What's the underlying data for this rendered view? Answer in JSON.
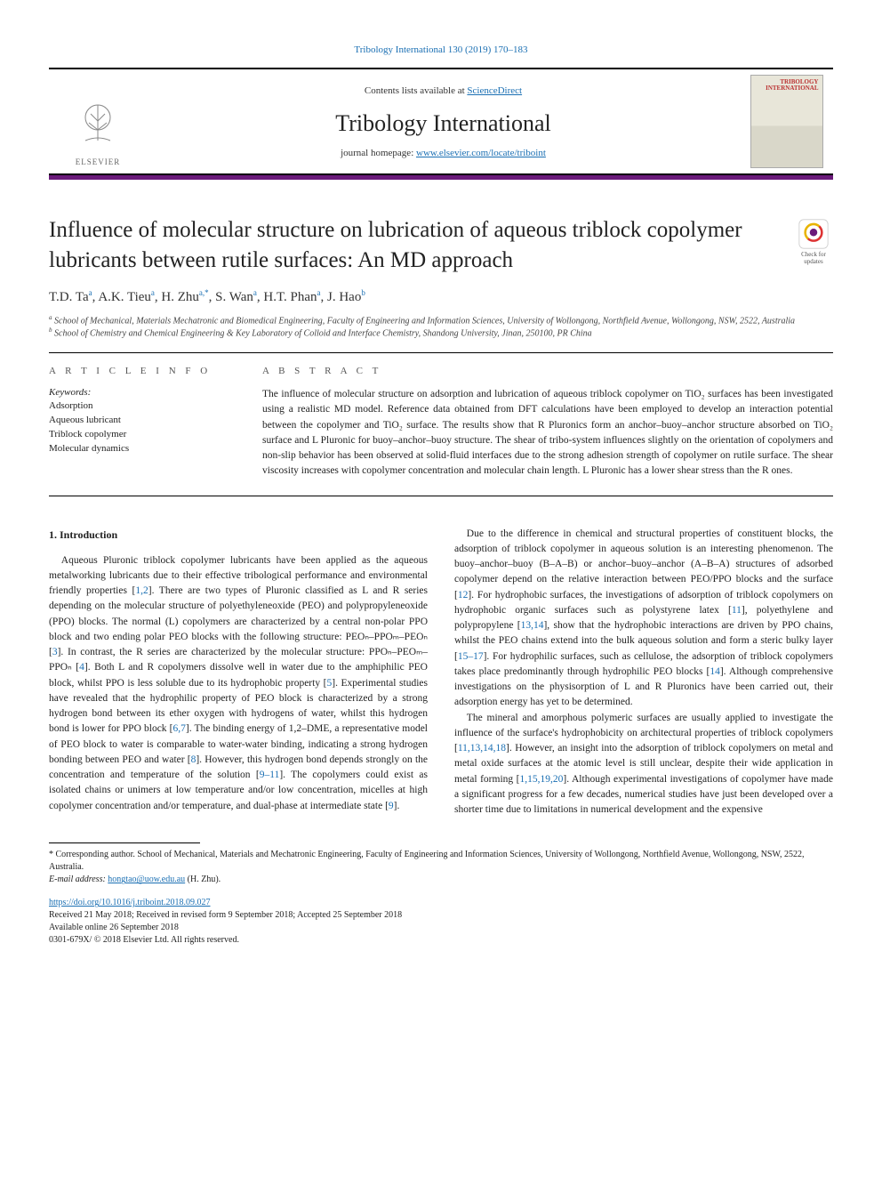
{
  "header": {
    "citation": "Tribology International 130 (2019) 170–183",
    "contents_prefix": "Contents lists available at ",
    "contents_link": "ScienceDirect",
    "journal": "Tribology International",
    "homepage_prefix": "journal homepage: ",
    "homepage_url": "www.elsevier.com/locate/triboint",
    "publisher_label": "ELSEVIER",
    "cover_label": "TRIBOLOGY INTERNATIONAL"
  },
  "badge": {
    "line1": "Check for",
    "line2": "updates"
  },
  "article": {
    "title": "Influence of molecular structure on lubrication of aqueous triblock copolymer lubricants between rutile surfaces: An MD approach",
    "authors_html": "T.D. Ta<sup>a</sup>, A.K. Tieu<sup>a</sup>, H. Zhu<sup>a,*</sup>, S. Wan<sup>a</sup>, H.T. Phan<sup>a</sup>, J. Hao<sup>b</sup>",
    "affiliations": [
      "a School of Mechanical, Materials Mechatronic and Biomedical Engineering, Faculty of Engineering and Information Sciences, University of Wollongong, Northfield Avenue, Wollongong, NSW, 2522, Australia",
      "b School of Chemistry and Chemical Engineering & Key Laboratory of Colloid and Interface Chemistry, Shandong University, Jinan, 250100, PR China"
    ]
  },
  "info": {
    "article_info_label": "A R T I C L E  I N F O",
    "abstract_label": "A B S T R A C T",
    "keywords_head": "Keywords:",
    "keywords": [
      "Adsorption",
      "Aqueous lubricant",
      "Triblock copolymer",
      "Molecular dynamics"
    ],
    "abstract": "The influence of molecular structure on adsorption and lubrication of aqueous triblock copolymer on TiO₂ surfaces has been investigated using a realistic MD model. Reference data obtained from DFT calculations have been employed to develop an interaction potential between the copolymer and TiO₂ surface. The results show that R Pluronics form an anchor–buoy–anchor structure absorbed on TiO₂ surface and L Pluronic for buoy–anchor–buoy structure. The shear of tribo-system influences slightly on the orientation of copolymers and non-slip behavior has been observed at solid-fluid interfaces due to the strong adhesion strength of copolymer on rutile surface. The shear viscosity increases with copolymer concentration and molecular chain length. L Pluronic has a lower shear stress than the R ones."
  },
  "body": {
    "intro_head": "1. Introduction",
    "left_paragraphs": [
      "Aqueous Pluronic triblock copolymer lubricants have been applied as the aqueous metalworking lubricants due to their effective tribological performance and environmental friendly properties [1,2]. There are two types of Pluronic classified as L and R series depending on the molecular structure of polyethyleneoxide (PEO) and polypropyleneoxide (PPO) blocks. The normal (L) copolymers are characterized by a central non-polar PPO block and two ending polar PEO blocks with the following structure: PEOₙ–PPOₘ–PEOₙ [3]. In contrast, the R series are characterized by the molecular structure: PPOₙ–PEOₘ–PPOₙ [4]. Both L and R copolymers dissolve well in water due to the amphiphilic PEO block, whilst PPO is less soluble due to its hydrophobic property [5]. Experimental studies have revealed that the hydrophilic property of PEO block is characterized by a strong hydrogen bond between its ether oxygen with hydrogens of water, whilst this hydrogen bond is lower for PPO block [6,7]. The binding energy of 1,2–DME, a representative model of PEO block to water is comparable to water-water binding, indicating a strong hydrogen bonding between PEO and water [8]. However, this hydrogen bond depends strongly on the concentration and temperature of the solution [9–11]. The copolymers could exist as isolated chains or unimers at low temperature and/or low concentration, micelles at high copolymer concentration and/or temperature, and dual-phase at intermediate state [9]."
    ],
    "right_paragraphs": [
      "Due to the difference in chemical and structural properties of constituent blocks, the adsorption of triblock copolymer in aqueous solution is an interesting phenomenon. The buoy–anchor–buoy (B–A–B) or anchor–buoy–anchor (A–B–A) structures of adsorbed copolymer depend on the relative interaction between PEO/PPO blocks and the surface [12]. For hydrophobic surfaces, the investigations of adsorption of triblock copolymers on hydrophobic organic surfaces such as polystyrene latex [11], polyethylene and polypropylene [13,14], show that the hydrophobic interactions are driven by PPO chains, whilst the PEO chains extend into the bulk aqueous solution and form a steric bulky layer [15–17]. For hydrophilic surfaces, such as cellulose, the adsorption of triblock copolymers takes place predominantly through hydrophilic PEO blocks [14]. Although comprehensive investigations on the physisorption of L and R Pluronics have been carried out, their adsorption energy has yet to be determined.",
      "The mineral and amorphous polymeric surfaces are usually applied to investigate the influence of the surface's hydrophobicity on architectural properties of triblock copolymers [11,13,14,18]. However, an insight into the adsorption of triblock copolymers on metal and metal oxide surfaces at the atomic level is still unclear, despite their wide application in metal forming [1,15,19,20]. Although experimental investigations of copolymer have made a significant progress for a few decades, numerical studies have just been developed over a shorter time due to limitations in numerical development and the expensive"
    ]
  },
  "footnotes": {
    "corresponding": "* Corresponding author. School of Mechanical, Materials and Mechatronic Engineering, Faculty of Engineering and Information Sciences, University of Wollongong, Northfield Avenue, Wollongong, NSW, 2522, Australia.",
    "email_label": "E-mail address: ",
    "email": "hongtao@uow.edu.au",
    "email_name": " (H. Zhu)."
  },
  "doi": {
    "url": "https://doi.org/10.1016/j.triboint.2018.09.027",
    "received": "Received 21 May 2018; Received in revised form 9 September 2018; Accepted 25 September 2018",
    "online": "Available online 26 September 2018",
    "copyright": "0301-679X/ © 2018 Elsevier Ltd. All rights reserved."
  },
  "colors": {
    "link": "#1a6fb3",
    "brand_bar": "#6a1a7a",
    "text": "#222222"
  },
  "typography": {
    "body_fontsize_pt": 9,
    "title_fontsize_pt": 19,
    "journal_fontsize_pt": 20
  }
}
